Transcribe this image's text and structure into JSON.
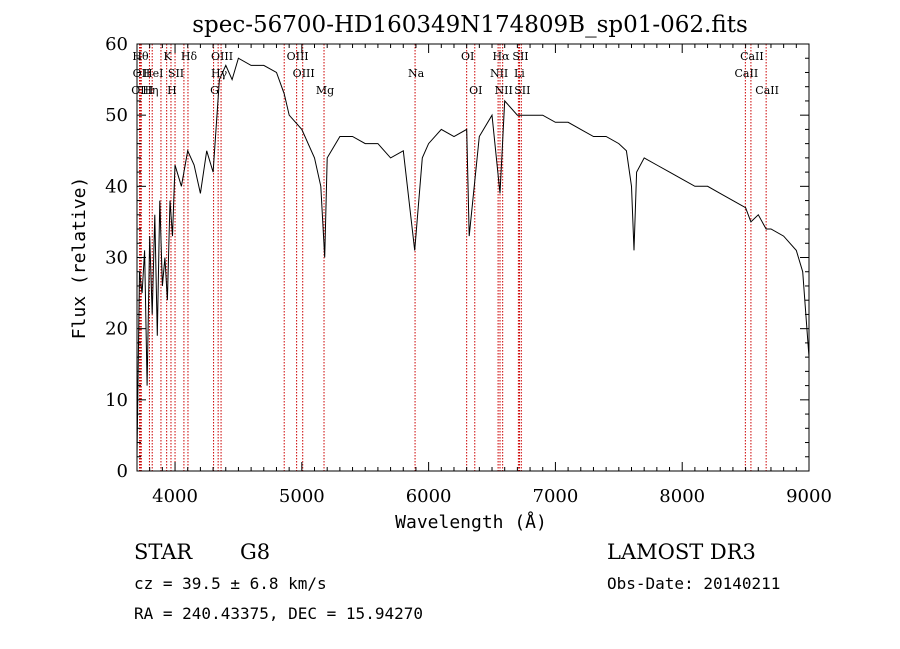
{
  "chart_data": {
    "type": "line",
    "title": "spec-56700-HD160349N174809B_sp01-062.fits",
    "xlabel": "Wavelength (Å)",
    "ylabel": "Flux (relative)",
    "xlim": [
      3700,
      9000
    ],
    "ylim": [
      0,
      60
    ],
    "xticks": [
      4000,
      5000,
      6000,
      7000,
      8000,
      9000
    ],
    "yticks": [
      0,
      10,
      20,
      30,
      40,
      50,
      60
    ],
    "grid": false,
    "line_color": "#000000",
    "marker_color": "#cc0000",
    "series": [
      {
        "x": [
          3700,
          3720,
          3740,
          3760,
          3780,
          3800,
          3820,
          3840,
          3860,
          3880,
          3900,
          3920,
          3940,
          3960,
          3980,
          4000,
          4050,
          4100,
          4150,
          4200,
          4250,
          4300,
          4350,
          4400,
          4450,
          4500,
          4600,
          4700,
          4800,
          4861,
          4900,
          5000,
          5100,
          5150,
          5180,
          5200,
          5300,
          5400,
          5500,
          5600,
          5700,
          5800,
          5890,
          5950,
          6000,
          6100,
          6200,
          6300,
          6320,
          6400,
          6500,
          6563,
          6600,
          6700,
          6800,
          6900,
          7000,
          7100,
          7200,
          7300,
          7400,
          7500,
          7560,
          7600,
          7620,
          7640,
          7700,
          7800,
          7900,
          8000,
          8100,
          8200,
          8300,
          8400,
          8500,
          8542,
          8600,
          8662,
          8700,
          8800,
          8900,
          8950,
          9000
        ],
        "y": [
          2,
          28,
          25,
          31,
          12,
          33,
          22,
          36,
          19,
          38,
          26,
          30,
          24,
          38,
          33,
          43,
          40,
          45,
          43,
          39,
          45,
          42,
          55,
          57,
          55,
          58,
          57,
          57,
          56,
          53,
          50,
          48,
          44,
          40,
          30,
          44,
          47,
          47,
          46,
          46,
          44,
          45,
          31,
          44,
          46,
          48,
          47,
          48,
          33,
          47,
          50,
          39,
          52,
          50,
          50,
          50,
          49,
          49,
          48,
          47,
          47,
          46,
          45,
          40,
          31,
          42,
          44,
          43,
          42,
          41,
          40,
          40,
          39,
          38,
          37,
          35,
          36,
          34,
          34,
          33,
          31,
          28,
          16
        ]
      }
    ],
    "lines": [
      {
        "w": 3720,
        "label": "Hθ",
        "row": 1
      },
      {
        "w": 3727,
        "label": "OII",
        "row": 2
      },
      {
        "w": 3734,
        "label": "OIII",
        "row": 3
      },
      {
        "w": 3798,
        "label": "Hη",
        "row": 3
      },
      {
        "w": 3820,
        "label": "HeI",
        "row": 2
      },
      {
        "w": 3889,
        "label": "",
        "row": 0
      },
      {
        "w": 3934,
        "label": "K",
        "row": 1
      },
      {
        "w": 3968,
        "label": "H",
        "row": 3
      },
      {
        "w": 4000,
        "label": "SII",
        "row": 2
      },
      {
        "w": 4102,
        "label": "Hδ",
        "row": 1
      },
      {
        "w": 4070,
        "label": "",
        "row": 0
      },
      {
        "w": 4304,
        "label": "G",
        "row": 3
      },
      {
        "w": 4340,
        "label": "Hγ",
        "row": 2
      },
      {
        "w": 4363,
        "label": "OIII",
        "row": 1
      },
      {
        "w": 4861,
        "label": "",
        "row": 0
      },
      {
        "w": 4959,
        "label": "OIII",
        "row": 1
      },
      {
        "w": 5007,
        "label": "OIII",
        "row": 2
      },
      {
        "w": 5175,
        "label": "Mg",
        "row": 3
      },
      {
        "w": 5893,
        "label": "Na",
        "row": 2
      },
      {
        "w": 6300,
        "label": "OI",
        "row": 1
      },
      {
        "w": 6364,
        "label": "OI",
        "row": 3
      },
      {
        "w": 6548,
        "label": "NII",
        "row": 2
      },
      {
        "w": 6563,
        "label": "Hα",
        "row": 1
      },
      {
        "w": 6584,
        "label": "NII",
        "row": 3
      },
      {
        "w": 6708,
        "label": "Li",
        "row": 2
      },
      {
        "w": 6717,
        "label": "SII",
        "row": 1
      },
      {
        "w": 6731,
        "label": "SII",
        "row": 3
      },
      {
        "w": 8498,
        "label": "CaII",
        "row": 2
      },
      {
        "w": 8542,
        "label": "CaII",
        "row": 1
      },
      {
        "w": 8662,
        "label": "CaII",
        "row": 3
      }
    ]
  },
  "info": {
    "class": "STAR",
    "subclass": "G8",
    "survey": "LAMOST DR3",
    "cz": "cz = 39.5 ± 6.8 km/s",
    "obs_date": "Obs-Date: 20140211",
    "coords": "RA = 240.43375, DEC =  15.94270"
  }
}
